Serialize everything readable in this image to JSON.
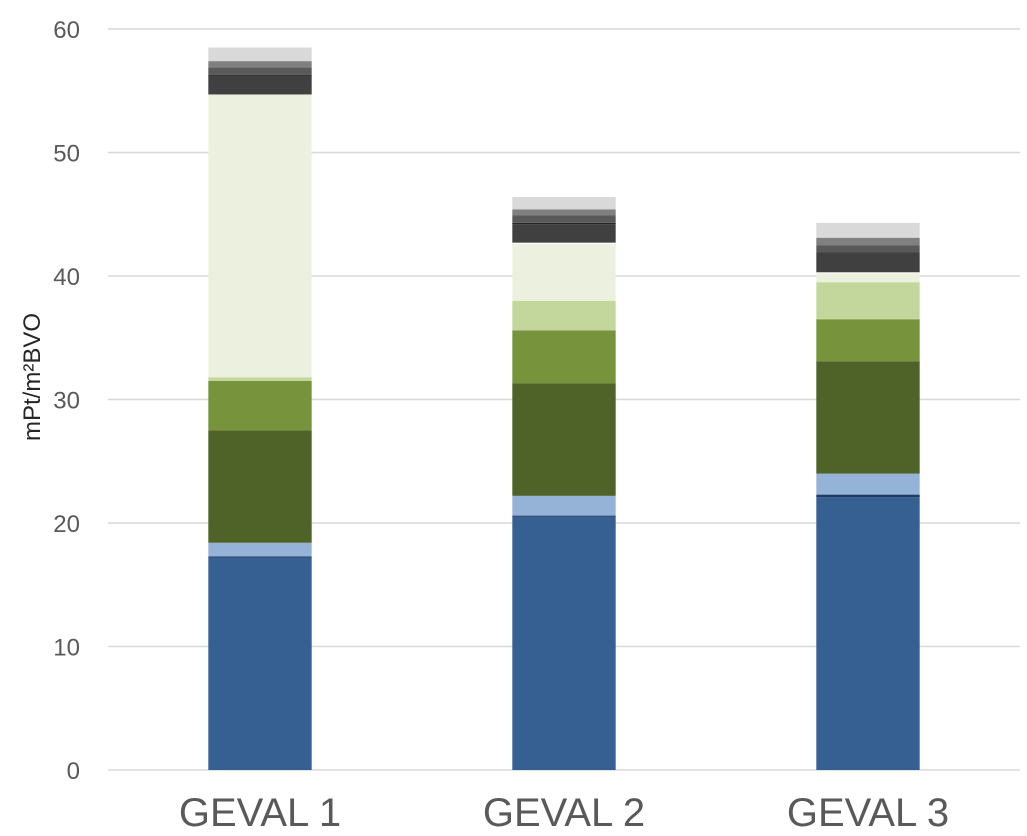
{
  "chart_data": {
    "type": "bar",
    "stacked": true,
    "title": "",
    "xlabel": "",
    "ylabel": "mPt/m²BVO",
    "ylim": [
      0,
      60
    ],
    "yticks": [
      0,
      10,
      20,
      30,
      40,
      50,
      60
    ],
    "grid": true,
    "legend": "none",
    "categories": [
      "GEVAL 1",
      "GEVAL 2",
      "GEVAL 3"
    ],
    "series": [
      {
        "color": "#376092",
        "values": [
          17.2,
          20.5,
          22.1
        ]
      },
      {
        "color": "#1F3864",
        "values": [
          0.1,
          0.1,
          0.2
        ]
      },
      {
        "color": "#95B3D7",
        "values": [
          1.1,
          1.6,
          1.7
        ]
      },
      {
        "color": "#4F6228",
        "values": [
          9.1,
          9.1,
          9.1
        ]
      },
      {
        "color": "#77933C",
        "values": [
          4.0,
          4.3,
          3.4
        ]
      },
      {
        "color": "#C3D69B",
        "values": [
          0.3,
          2.4,
          3.0
        ]
      },
      {
        "color": "#EBF1DE",
        "values": [
          22.9,
          4.6,
          0.7
        ]
      },
      {
        "color": "#FFFFFF",
        "values": [
          0.0,
          0.1,
          0.1
        ]
      },
      {
        "color": "#404040",
        "values": [
          1.5,
          1.5,
          1.5
        ]
      },
      {
        "color": "#262626",
        "values": [
          0.1,
          0.1,
          0.1
        ]
      },
      {
        "color": "#595959",
        "values": [
          0.6,
          0.6,
          0.6
        ]
      },
      {
        "color": "#808080",
        "values": [
          0.5,
          0.5,
          0.6
        ]
      },
      {
        "color": "#D9D9D9",
        "values": [
          1.1,
          1.0,
          1.2
        ]
      }
    ],
    "colors": {
      "grid": "#D9D9D9",
      "tick_text": "#595959",
      "axis_title": "#262626"
    }
  }
}
